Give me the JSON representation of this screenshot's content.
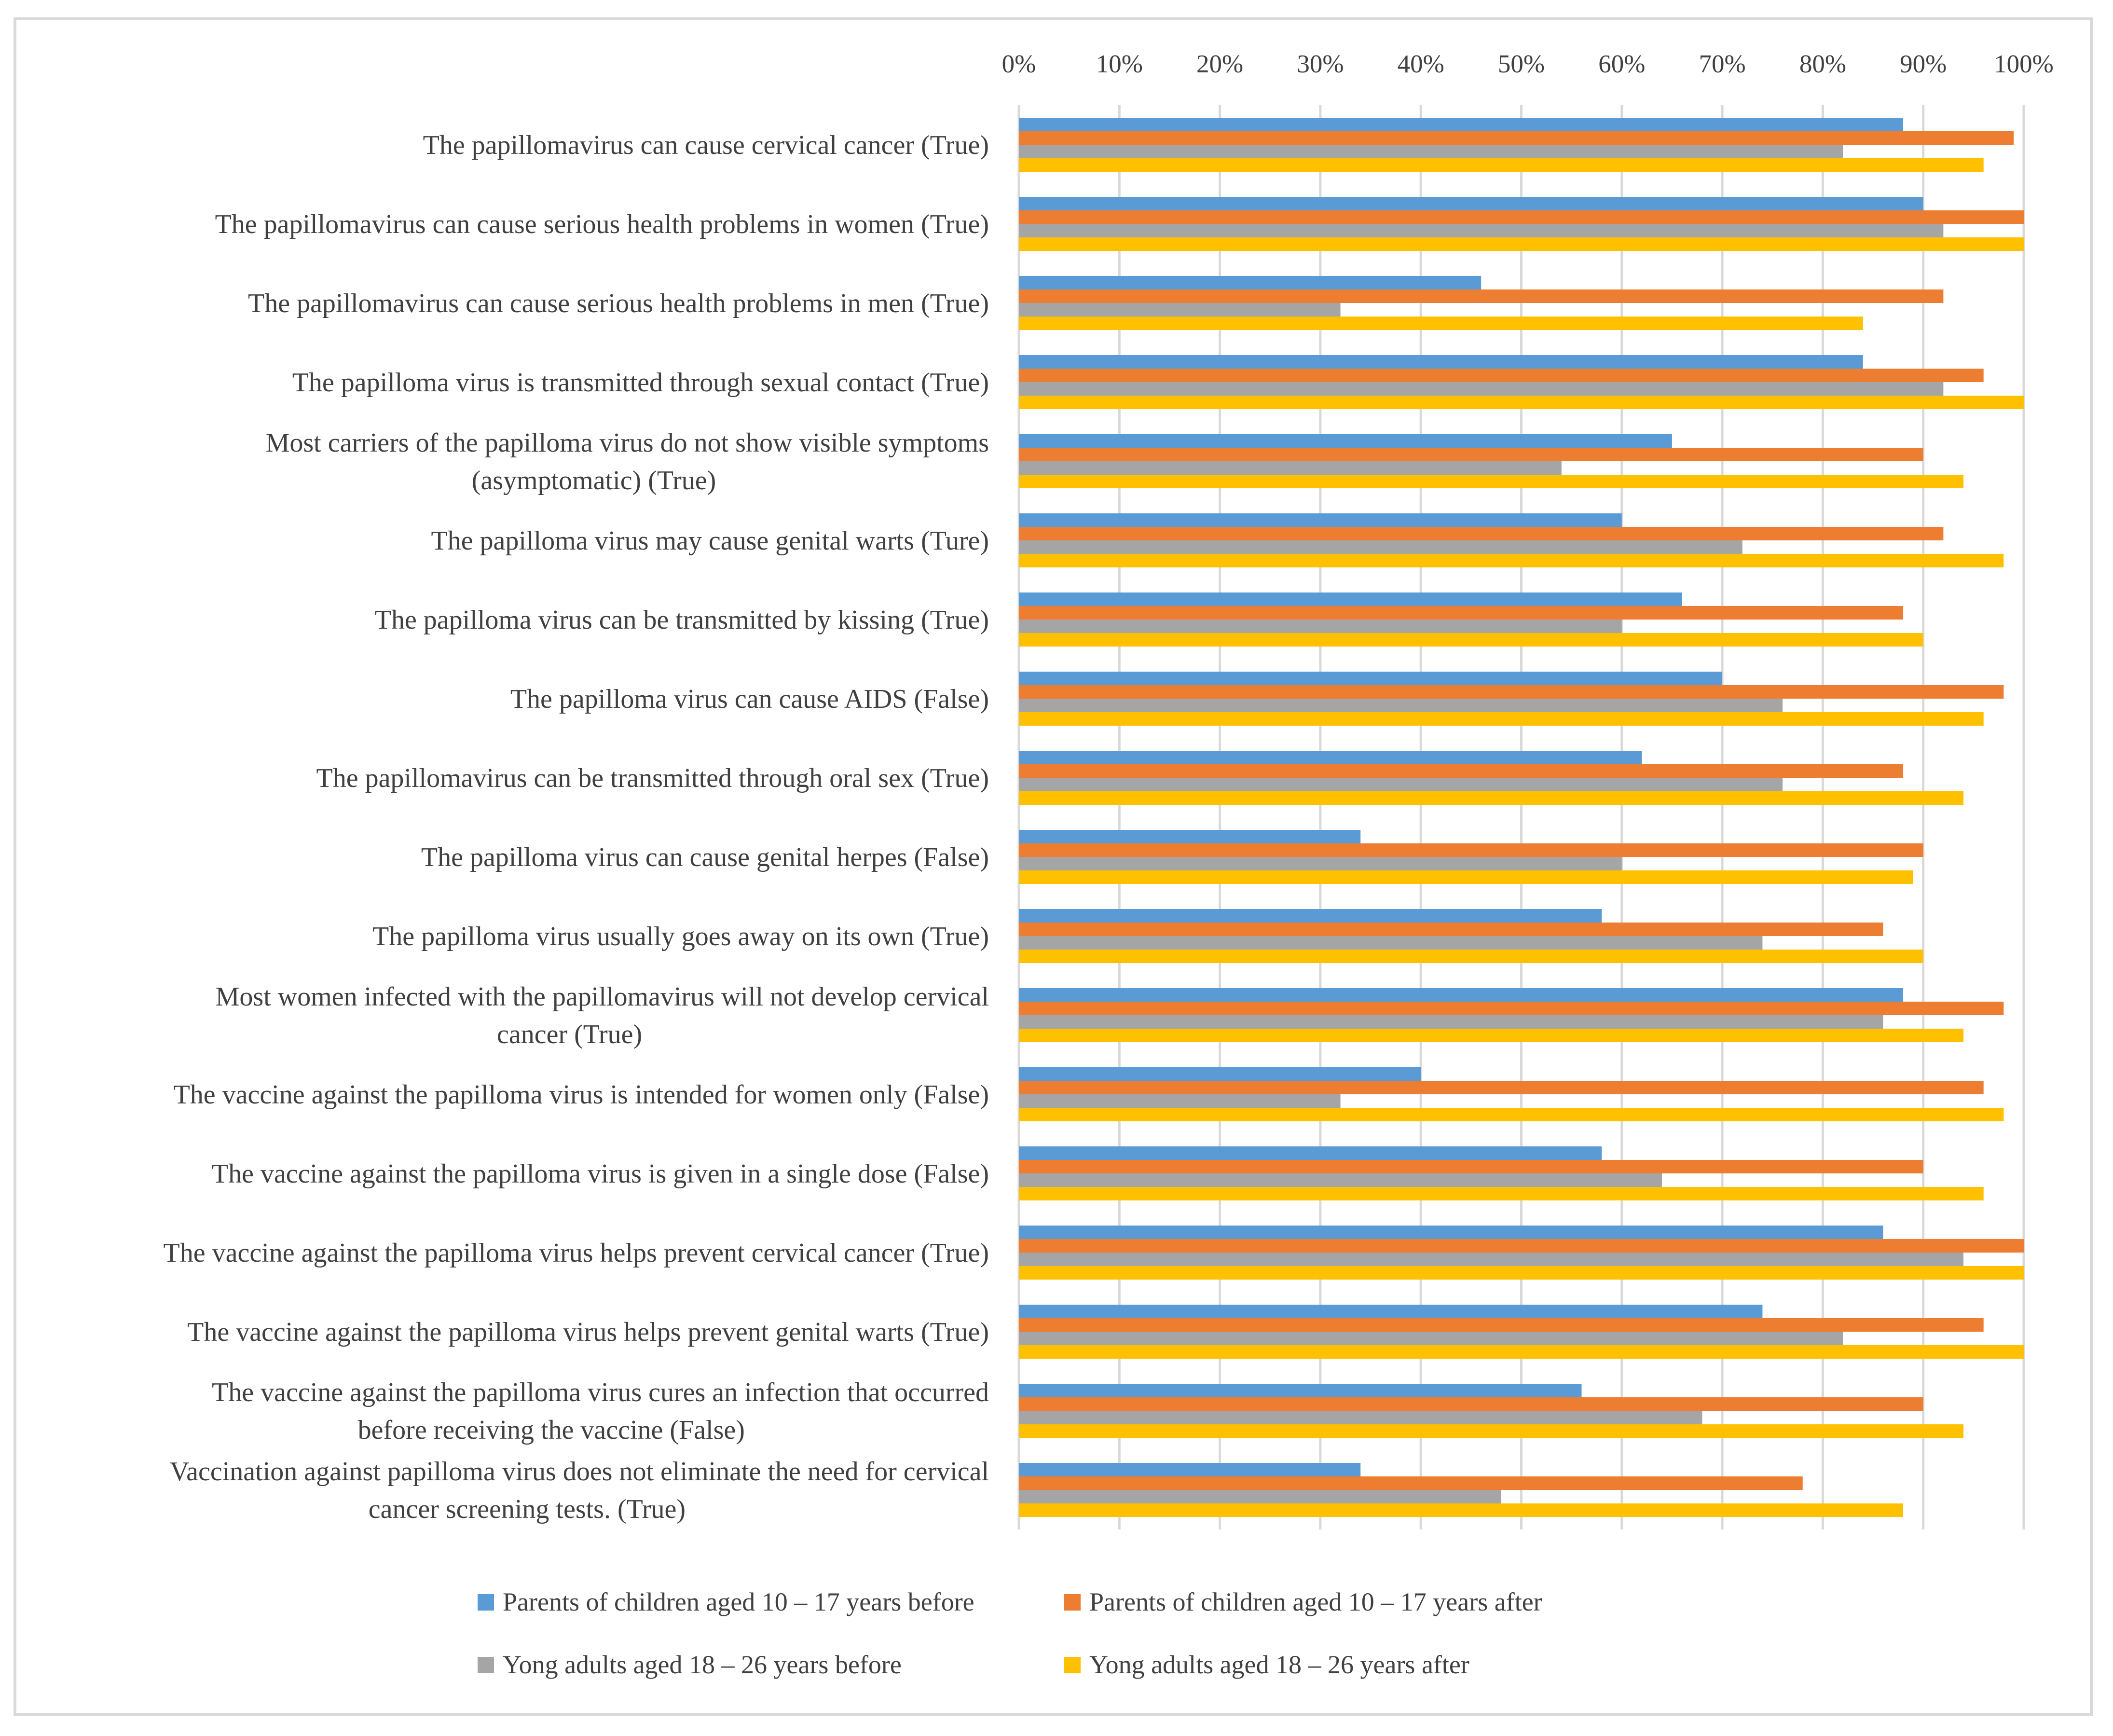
{
  "chart_data": {
    "type": "bar",
    "orientation": "horizontal",
    "categories": [
      "The papillomavirus can cause cervical cancer (True)",
      "The papillomavirus can cause serious health problems in women (True)",
      "The papillomavirus can cause serious health problems in men (True)",
      "The papilloma virus is transmitted through sexual contact (True)",
      "Most carriers of the papilloma virus do not show visible symptoms (asymptomatic) (True)",
      "The papilloma virus may cause genital warts (Ture)",
      "The papilloma virus can be transmitted by kissing (True)",
      "The papilloma virus can cause AIDS (False)",
      "The papillomavirus can be transmitted through oral sex (True)",
      "The papilloma virus can cause genital herpes (False)",
      "The papilloma virus usually goes away on its own (True)",
      "Most women infected with the papillomavirus will not develop cervical cancer (True)",
      "The vaccine against the papilloma virus is intended for women only (False)",
      "The vaccine against the papilloma virus is given in a single dose (False)",
      "The vaccine against the papilloma virus helps prevent cervical cancer (True)",
      "The vaccine against the papilloma virus helps prevent genital warts (True)",
      "The vaccine against the papilloma virus cures an infection that occurred before receiving the vaccine (False)",
      "Vaccination against papilloma virus does not eliminate the need for cervical cancer screening tests. (True)"
    ],
    "category_lines": [
      [
        "The papillomavirus can cause cervical cancer (True)"
      ],
      [
        "The papillomavirus can cause serious health problems in women (True)"
      ],
      [
        "The papillomavirus can cause serious health problems in men (True)"
      ],
      [
        "The papilloma virus is transmitted through sexual contact (True)"
      ],
      [
        "Most carriers of the papilloma virus do not show visible symptoms",
        "(asymptomatic) (True)"
      ],
      [
        "The papilloma virus may cause genital warts (Ture)"
      ],
      [
        "The papilloma virus can be transmitted by kissing (True)"
      ],
      [
        "The papilloma virus can cause AIDS (False)"
      ],
      [
        "The papillomavirus can be transmitted through oral sex (True)"
      ],
      [
        "The papilloma virus can cause genital herpes (False)"
      ],
      [
        "The papilloma virus usually goes away on its own (True)"
      ],
      [
        "Most women infected with the papillomavirus will not develop cervical",
        "cancer (True)"
      ],
      [
        "The vaccine against the papilloma virus is intended for women only (False)"
      ],
      [
        "The vaccine against the papilloma virus is given in a single dose (False)"
      ],
      [
        "The vaccine against the papilloma virus helps prevent cervical cancer (True)"
      ],
      [
        "The vaccine against the papilloma virus helps prevent genital warts (True)"
      ],
      [
        "The vaccine against the papilloma virus cures an infection that occurred",
        "before receiving the vaccine (False)"
      ],
      [
        "Vaccination against papilloma virus does not eliminate the need for cervical",
        "cancer screening tests. (True)"
      ]
    ],
    "series": [
      {
        "name": "Parents of children aged 10 – 17 years before",
        "color": "#5B9BD5",
        "values": [
          88,
          90,
          46,
          84,
          65,
          60,
          66,
          70,
          62,
          34,
          58,
          88,
          40,
          58,
          86,
          74,
          56,
          34
        ]
      },
      {
        "name": "Parents of children aged 10 – 17 years after",
        "color": "#ED7D31",
        "values": [
          99,
          100,
          92,
          96,
          90,
          92,
          88,
          98,
          88,
          90,
          86,
          98,
          96,
          90,
          100,
          96,
          90,
          78
        ]
      },
      {
        "name": "Yong adults aged 18 – 26 years before",
        "color": "#A5A5A5",
        "values": [
          82,
          92,
          32,
          92,
          54,
          72,
          60,
          76,
          76,
          60,
          74,
          86,
          32,
          64,
          94,
          82,
          68,
          48
        ]
      },
      {
        "name": "Yong adults aged 18 – 26 years after",
        "color": "#FFC000",
        "values": [
          96,
          100,
          84,
          100,
          94,
          98,
          90,
          96,
          94,
          89,
          90,
          94,
          98,
          96,
          100,
          100,
          94,
          88
        ]
      }
    ],
    "x_ticks": [
      "0%",
      "10%",
      "20%",
      "30%",
      "40%",
      "50%",
      "60%",
      "70%",
      "80%",
      "90%",
      "100%"
    ],
    "xlim": [
      0,
      100
    ],
    "x_axis_position": "top",
    "grid": true,
    "legend_position": "bottom",
    "title": "",
    "xlabel": "",
    "ylabel": ""
  }
}
